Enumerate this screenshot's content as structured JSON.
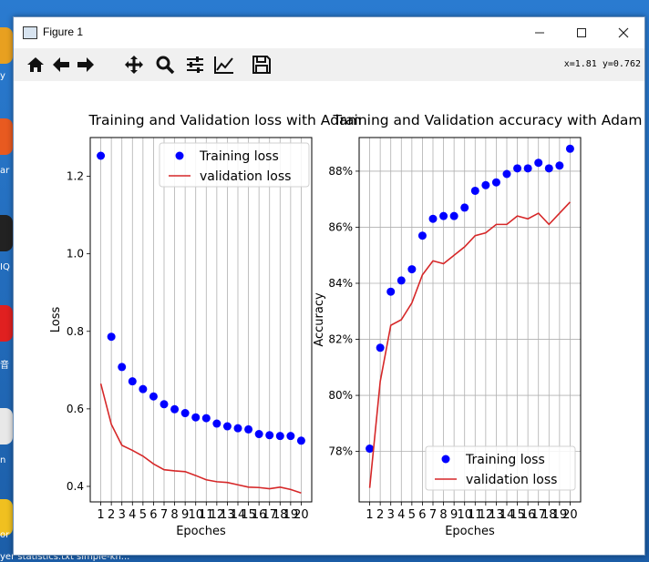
{
  "window": {
    "title": "Figure 1"
  },
  "toolbar": {
    "buttons": [
      "home-icon",
      "back-icon",
      "forward-icon",
      "pan-icon",
      "zoom-icon",
      "configure-subplots-icon",
      "edit-axis-icon",
      "save-icon"
    ],
    "coord_readout": "x=1.81 y=0.762"
  },
  "desktop": {
    "labels": [
      "y",
      "ar",
      "IQ",
      "音",
      "n",
      "or"
    ],
    "taskbar": "yer    statistics.txt  simple-kn..."
  },
  "chart_data": [
    {
      "type": "line",
      "title": "Training and Validation loss with Adam",
      "xlabel": "Epoches",
      "ylabel": "Loss",
      "x": [
        1,
        2,
        3,
        4,
        5,
        6,
        7,
        8,
        9,
        10,
        11,
        12,
        13,
        14,
        15,
        16,
        17,
        18,
        19,
        20
      ],
      "xticklabels": [
        "1",
        "2",
        "3",
        "4",
        "5",
        "6",
        "7",
        "8",
        "9",
        "10",
        "11",
        "12",
        "13",
        "14",
        "15",
        "16",
        "17",
        "18",
        "19",
        "20"
      ],
      "xlim": [
        0,
        21
      ],
      "ylim": [
        0.36,
        1.3
      ],
      "yticks": [
        0.4,
        0.6,
        0.8,
        1.0,
        1.2
      ],
      "yticklabels": [
        "0.4",
        "0.6",
        "0.8",
        "1.0",
        "1.2"
      ],
      "grid": "x",
      "legend": "top-right",
      "series": [
        {
          "name": "Training loss",
          "style": "dots",
          "color": "#0000ff",
          "values": [
            1.253,
            0.786,
            0.708,
            0.671,
            0.651,
            0.632,
            0.612,
            0.599,
            0.589,
            0.578,
            0.576,
            0.562,
            0.555,
            0.55,
            0.547,
            0.535,
            0.532,
            0.53,
            0.53,
            0.518
          ]
        },
        {
          "name": "validation loss",
          "style": "line",
          "color": "#d62728",
          "values": [
            0.665,
            0.56,
            0.506,
            0.493,
            0.478,
            0.458,
            0.443,
            0.44,
            0.438,
            0.428,
            0.417,
            0.412,
            0.41,
            0.404,
            0.398,
            0.397,
            0.394,
            0.398,
            0.392,
            0.383
          ]
        }
      ]
    },
    {
      "type": "line",
      "title": "Training and Validation accuracy with Adam",
      "xlabel": "Epoches",
      "ylabel": "Accuracy",
      "x": [
        1,
        2,
        3,
        4,
        5,
        6,
        7,
        8,
        9,
        10,
        11,
        12,
        13,
        14,
        15,
        16,
        17,
        18,
        19,
        20
      ],
      "xticklabels": [
        "1",
        "2",
        "3",
        "4",
        "5",
        "6",
        "7",
        "8",
        "9",
        "10",
        "11",
        "12",
        "13",
        "14",
        "15",
        "16",
        "17",
        "18",
        "19",
        "20"
      ],
      "xlim": [
        0,
        21
      ],
      "ylim": [
        0.762,
        0.892
      ],
      "yticks": [
        0.78,
        0.8,
        0.82,
        0.84,
        0.86,
        0.88
      ],
      "yticklabels": [
        "78%",
        "80%",
        "82%",
        "84%",
        "86%",
        "88%"
      ],
      "grid": "both",
      "legend": "bottom-right",
      "series": [
        {
          "name": "Training loss",
          "style": "dots",
          "color": "#0000ff",
          "values": [
            0.781,
            0.817,
            0.837,
            0.841,
            0.845,
            0.857,
            0.863,
            0.864,
            0.864,
            0.867,
            0.873,
            0.875,
            0.876,
            0.879,
            0.881,
            0.881,
            0.883,
            0.881,
            0.882,
            0.888
          ]
        },
        {
          "name": "validation loss",
          "style": "line",
          "color": "#d62728",
          "values": [
            0.767,
            0.805,
            0.825,
            0.827,
            0.833,
            0.843,
            0.848,
            0.847,
            0.85,
            0.853,
            0.857,
            0.858,
            0.861,
            0.861,
            0.864,
            0.863,
            0.865,
            0.861,
            0.865,
            0.869
          ]
        }
      ]
    }
  ]
}
